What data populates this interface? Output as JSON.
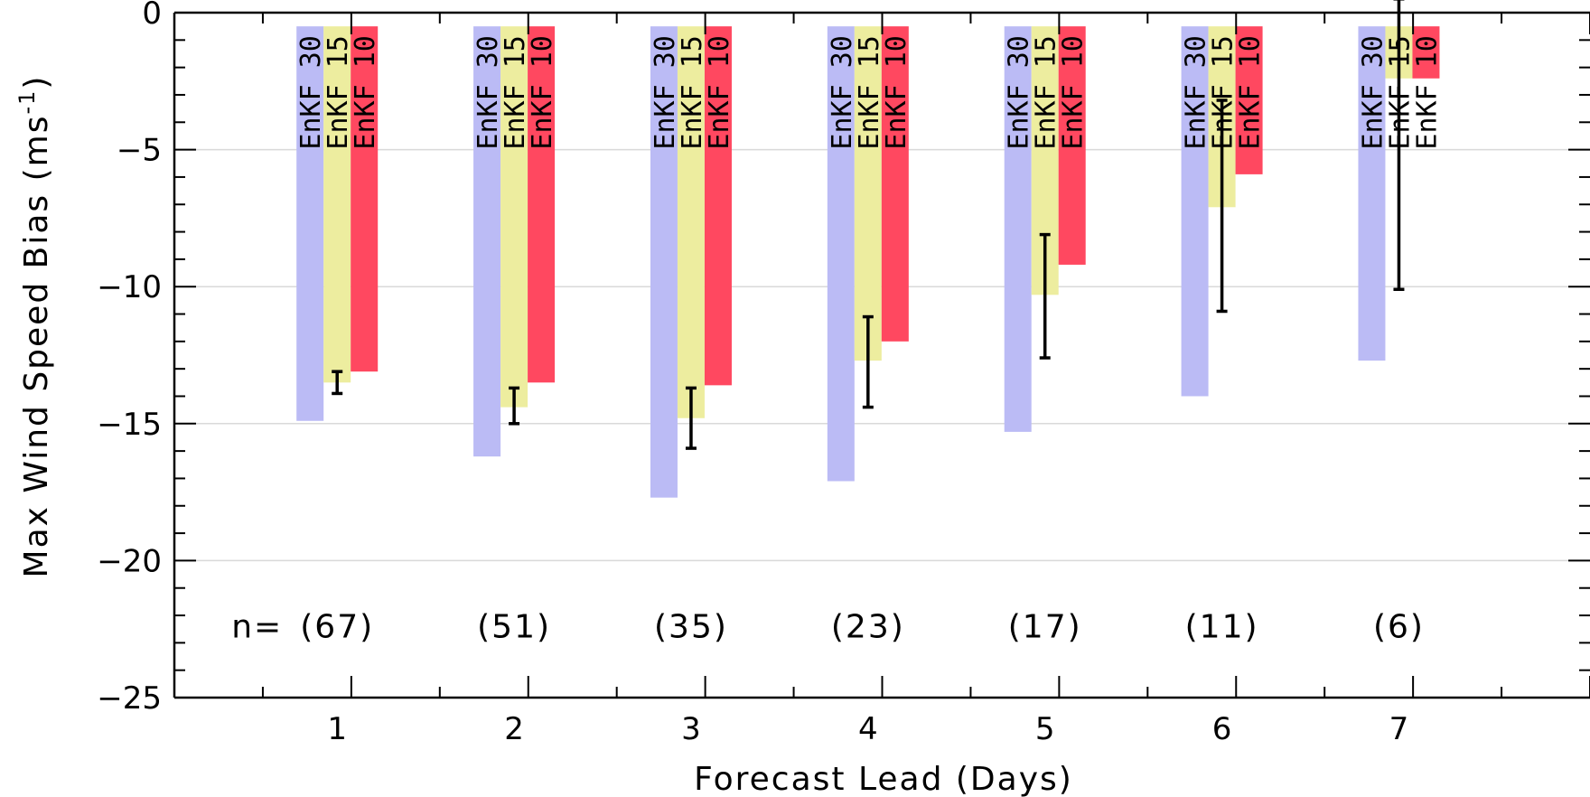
{
  "chart_data": {
    "type": "bar",
    "title": "",
    "xlabel": "Forecast Lead (Days)",
    "ylabel": "Max Wind Speed Bias (ms",
    "ylabel_unit_exp": "-1",
    "ylabel_close": ")",
    "ylim": [
      -25,
      0
    ],
    "xlim": [
      0,
      8
    ],
    "yticks": [
      0,
      -5,
      -10,
      -15,
      -20,
      -25
    ],
    "ytick_labels": [
      "0",
      "−5",
      "−10",
      "−15",
      "−20",
      "−25"
    ],
    "xticks": [
      1,
      2,
      3,
      4,
      5,
      6,
      7
    ],
    "xtick_labels": [
      "1",
      "2",
      "3",
      "4",
      "5",
      "6",
      "7"
    ],
    "grid": true,
    "series": [
      {
        "name": "EnKF 30",
        "color": "#bbbbf5",
        "values": [
          -14.9,
          -16.2,
          -17.7,
          -17.1,
          -15.3,
          -14.0,
          -12.7
        ]
      },
      {
        "name": "EnKF 15",
        "color": "#eded9f",
        "values": [
          -13.5,
          -14.4,
          -14.8,
          -12.7,
          -10.3,
          -7.1,
          -2.4
        ]
      },
      {
        "name": "EnKF 10",
        "color": "#ff4860",
        "values": [
          -13.1,
          -13.5,
          -13.6,
          -12.0,
          -9.2,
          -5.9,
          -2.4
        ]
      }
    ],
    "error_bars": [
      {
        "x": 1,
        "low": -13.9,
        "high": -13.1
      },
      {
        "x": 2,
        "low": -15.0,
        "high": -13.7
      },
      {
        "x": 3,
        "low": -15.9,
        "high": -13.7
      },
      {
        "x": 4,
        "low": -14.4,
        "high": -11.1
      },
      {
        "x": 5,
        "low": -12.6,
        "high": -8.1
      },
      {
        "x": 6,
        "low": -10.9,
        "high": -3.2
      },
      {
        "x": 7,
        "low": -10.1,
        "high": 0.5
      }
    ],
    "annotations": {
      "n_prefix": "n=",
      "counts": [
        "(67)",
        "(51)",
        "(35)",
        "(23)",
        "(17)",
        "(11)",
        "(6)"
      ]
    }
  }
}
